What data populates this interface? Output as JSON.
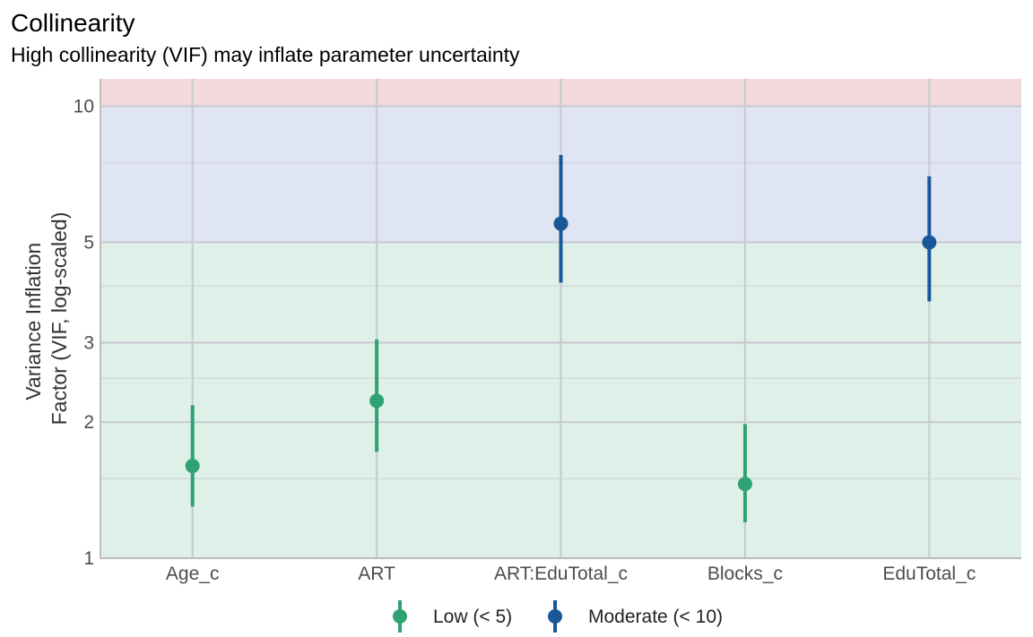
{
  "chart_data": {
    "type": "scatter",
    "title": "Collinearity",
    "subtitle": "High collinearity (VIF) may inflate parameter uncertainty",
    "ylabel_lines": [
      "Variance Inflation",
      "Factor (VIF, log-scaled)"
    ],
    "xlabel": "",
    "y_scale": "log",
    "ylim": [
      1,
      11.5
    ],
    "y_ticks": [
      1,
      2,
      3,
      5,
      10
    ],
    "y_minor_ticks": [
      1.5,
      2.5,
      4,
      7.5
    ],
    "categories": [
      "Age_c",
      "ART",
      "ART:EduTotal_c",
      "Blocks_c",
      "EduTotal_c"
    ],
    "points": [
      {
        "term": "Age_c",
        "vif": 1.6,
        "ci_low": 1.3,
        "ci_high": 2.18,
        "group": "low"
      },
      {
        "term": "ART",
        "vif": 2.23,
        "ci_low": 1.72,
        "ci_high": 3.05,
        "group": "low"
      },
      {
        "term": "ART:EduTotal_c",
        "vif": 5.5,
        "ci_low": 4.07,
        "ci_high": 7.8,
        "group": "moderate"
      },
      {
        "term": "Blocks_c",
        "vif": 1.46,
        "ci_low": 1.2,
        "ci_high": 1.98,
        "group": "low"
      },
      {
        "term": "EduTotal_c",
        "vif": 5.0,
        "ci_low": 3.7,
        "ci_high": 7.0,
        "group": "moderate"
      }
    ],
    "bands": [
      {
        "from": 1,
        "to": 5,
        "color": "#dff0e8"
      },
      {
        "from": 5,
        "to": 10,
        "color": "#dfe5f2"
      },
      {
        "from": 10,
        "to": 11.5,
        "color": "#f4d9dd"
      }
    ],
    "legend": {
      "position": "bottom",
      "items": [
        {
          "key": "low",
          "label": "Low (< 5)",
          "color": "#2fa273"
        },
        {
          "key": "moderate",
          "label": "Moderate (< 10)",
          "color": "#1a5798"
        }
      ]
    },
    "colors": {
      "gridline": "#c8ccd2",
      "axis_line": "#bfbfbf"
    }
  }
}
